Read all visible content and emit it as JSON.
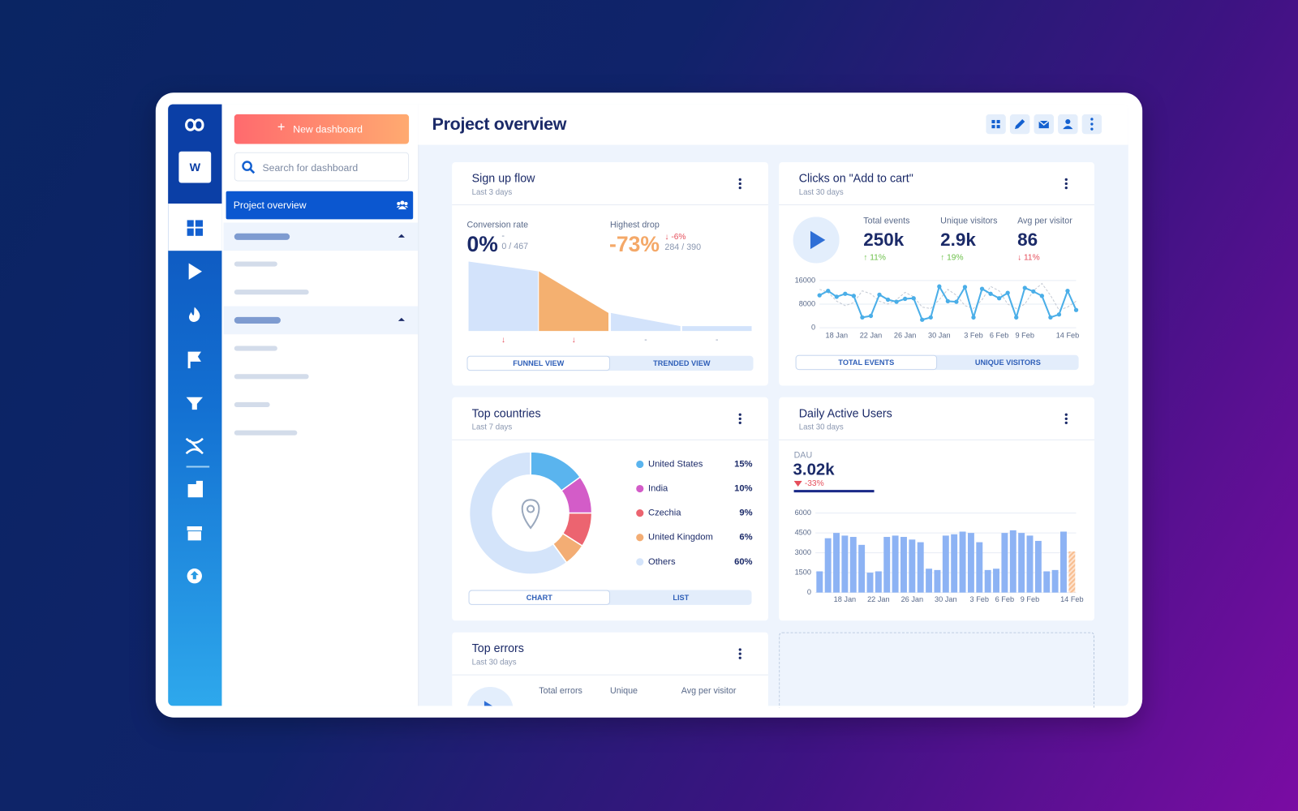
{
  "sidebar": {
    "workspace": "W"
  },
  "panel": {
    "new_button": "New dashboard",
    "search_placeholder": "Search for dashboard",
    "selected": "Project overview"
  },
  "header": {
    "title": "Project overview"
  },
  "widgets": {
    "signup": {
      "title": "Sign up flow",
      "subtitle": "Last 3 days",
      "conversion_label": "Conversion rate",
      "conversion_value": "0%",
      "conversion_delta": "-",
      "conversion_ratio": "0 / 467",
      "drop_label": "Highest drop",
      "drop_value": "-73%",
      "drop_delta": "↓ -6%",
      "drop_ratio": "284 / 390",
      "funnel": {
        "type": "funnel",
        "values": [
          100,
          86,
          26,
          7
        ],
        "ylim": [
          0,
          100
        ],
        "color": "#d3e3fb",
        "highlight": 1,
        "highlight_color": "#f4b070"
      },
      "step_marks": [
        "↓",
        "↓",
        "-",
        "-"
      ],
      "tabs": [
        "FUNNEL VIEW",
        "TRENDED VIEW"
      ]
    },
    "clicks": {
      "title": "Clicks on \"Add to cart\"",
      "subtitle": "Last 30 days",
      "stats": [
        {
          "label": "Total events",
          "value": "250k",
          "change": "↑ 11%",
          "color": "#6cc04a"
        },
        {
          "label": "Unique visitors",
          "value": "2.9k",
          "change": "↑ 19%",
          "color": "#6cc04a"
        },
        {
          "label": "Avg per visitor",
          "value": "86",
          "change": "↓ 11%",
          "color": "#e54e5b"
        }
      ],
      "chart": {
        "type": "line",
        "categories": [
          null,
          null,
          "18 Jan",
          null,
          null,
          null,
          "22 Jan",
          null,
          null,
          null,
          "26 Jan",
          null,
          null,
          null,
          "30 Jan",
          null,
          null,
          null,
          "3 Feb",
          null,
          null,
          "6 Feb",
          null,
          null,
          "9 Feb",
          null,
          null,
          null,
          null,
          "14 Feb",
          null
        ],
        "series": [
          {
            "color": "#4aaee8",
            "values": [
              11000,
              12500,
              10500,
              11500,
              10800,
              3500,
              4000,
              11200,
              9500,
              8800,
              9800,
              10000,
              2700,
              3500,
              14000,
              9000,
              8800,
              13800,
              3500,
              13200,
              11500,
              10000,
              11800,
              3500,
              13500,
              12300,
              10800,
              3500,
              4500,
              12500,
              6000
            ]
          },
          {
            "color": "#c4cad4",
            "values": [
              13000,
              12000,
              9000,
              7500,
              8500,
              12500,
              11500,
              9000,
              8000,
              9500,
              12000,
              10500,
              7000,
              6500,
              9500,
              13000,
              11000,
              7500,
              6500,
              9500,
              14000,
              12500,
              8000,
              6500,
              8000,
              12500,
              15000,
              11000,
              6000,
              7000,
              9000
            ]
          }
        ],
        "ylim": [
          0,
          16000
        ],
        "yticks": [
          0,
          8000,
          16000
        ],
        "grid": true
      },
      "tabs": [
        "TOTAL EVENTS",
        "UNIQUE VISITORS"
      ]
    },
    "countries": {
      "title": "Top countries",
      "subtitle": "Last 7 days",
      "chart": {
        "type": "pie",
        "categories": [
          "United States",
          "India",
          "Czechia",
          "United Kingdom",
          "Others"
        ],
        "values": [
          15,
          10,
          9,
          6,
          60
        ],
        "value_labels": [
          "15%",
          "10%",
          "9%",
          "6%",
          "60%"
        ],
        "colors": [
          "#5ab4ee",
          "#d35cc8",
          "#ec6470",
          "#f3ad74",
          "#d4e4fa"
        ]
      },
      "tabs": [
        "CHART",
        "LIST"
      ]
    },
    "dau": {
      "title": "Daily Active Users",
      "subtitle": "Last 30 days",
      "metric_label": "DAU",
      "metric": "3.02k",
      "change": "-33%",
      "chart": {
        "type": "bar",
        "categories": [
          null,
          null,
          null,
          "18 Jan",
          null,
          null,
          null,
          "22 Jan",
          null,
          null,
          null,
          "26 Jan",
          null,
          null,
          null,
          "30 Jan",
          null,
          null,
          null,
          "3 Feb",
          null,
          null,
          "6 Feb",
          null,
          null,
          "9 Feb",
          null,
          null,
          null,
          null,
          "14 Feb"
        ],
        "series": [
          {
            "color": "#8db3f4",
            "values": [
              1600,
              4100,
              4500,
              4300,
              4200,
              3600,
              1500,
              1600,
              4200,
              4300,
              4200,
              4000,
              3800,
              1800,
              1700,
              4300,
              4400,
              4600,
              4500,
              3800,
              1700,
              1800,
              4500,
              4700,
              4500,
              4300,
              3900,
              1600,
              1700,
              4600,
              null
            ]
          },
          {
            "color": "#f8bd8f",
            "values": [
              null,
              null,
              null,
              null,
              null,
              null,
              null,
              null,
              null,
              null,
              null,
              null,
              null,
              null,
              null,
              null,
              null,
              null,
              null,
              null,
              null,
              null,
              null,
              null,
              null,
              null,
              null,
              null,
              null,
              null,
              3100
            ]
          }
        ],
        "ylim": [
          0,
          6000
        ],
        "yticks": [
          0,
          1500,
          3000,
          4500,
          6000
        ],
        "grid": true
      }
    },
    "errors": {
      "title": "Top errors",
      "subtitle": "Last 30 days",
      "stat_labels": [
        "Total errors",
        "Unique",
        "Avg per visitor"
      ]
    }
  }
}
